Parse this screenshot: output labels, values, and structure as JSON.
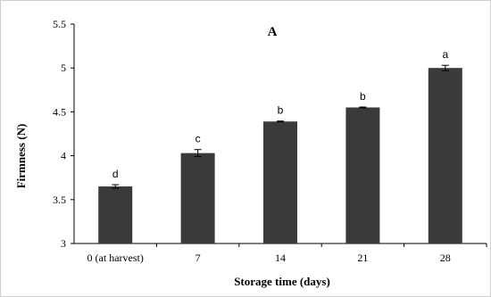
{
  "chart_data": {
    "type": "bar",
    "title": "A",
    "xlabel": "Storage time (days)",
    "ylabel": "Firmness (N)",
    "categories": [
      "0 (at harvest)",
      "7",
      "14",
      "21",
      "28"
    ],
    "values": [
      3.65,
      4.03,
      4.39,
      4.55,
      5.0
    ],
    "errors": [
      0.02,
      0.04,
      0.005,
      0.005,
      0.03
    ],
    "significance_labels": [
      "d",
      "c",
      "b",
      "b",
      "a"
    ],
    "ylim": [
      3,
      5.5
    ],
    "yticks": [
      "3",
      "3.5",
      "4",
      "4.5",
      "5",
      "5.5"
    ],
    "grid": false,
    "colors": {
      "bar": "#3a3a3a",
      "axis": "#000000"
    }
  }
}
